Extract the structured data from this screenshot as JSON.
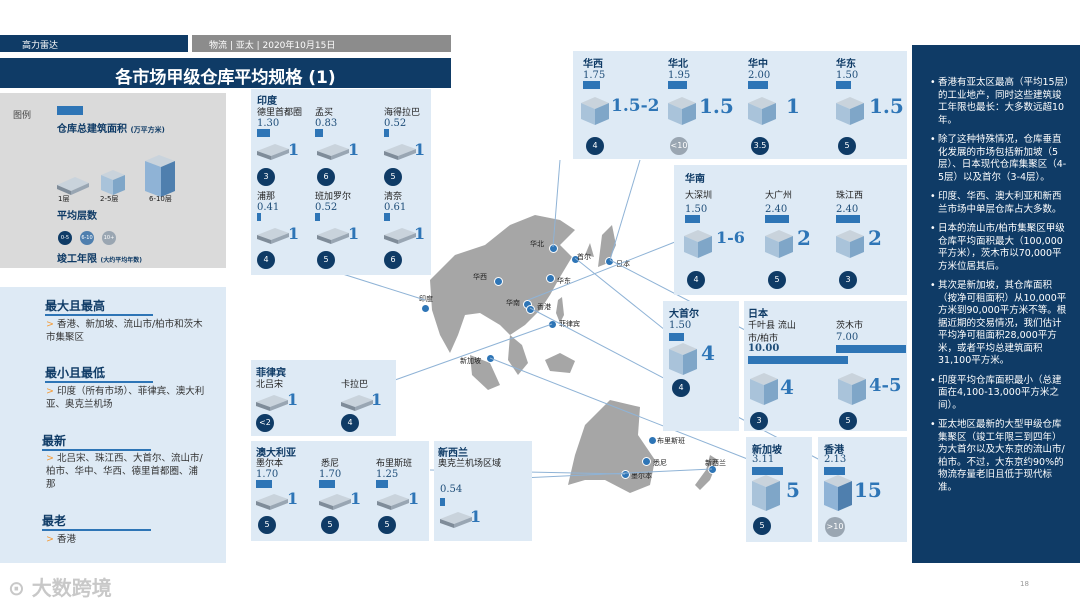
{
  "header": {
    "brand": "高力雷达",
    "meta": "物流 | 亚太 | 2020年10月15日",
    "title": "各市场甲级仓库平均规格 (1)"
  },
  "legend": {
    "label": "图例",
    "area_title": "仓库总建筑面积",
    "area_unit": "(万平方米)",
    "floor_1": "1层",
    "floor_2": "2-5层",
    "floor_3": "6-10层",
    "floors_title": "平均层数",
    "age_title": "竣工年限",
    "age_unit": "(大约平均年数)",
    "age_badges": [
      "0-5",
      "6-10",
      "10+"
    ]
  },
  "summary": [
    {
      "heading": "最大且最高",
      "text": "香港、新加坡、流山市/柏市和茨木市集聚区"
    },
    {
      "heading": "最小且最低",
      "text": "印度（所有市场）、菲律宾、澳大利亚、奥克兰机场"
    },
    {
      "heading": "最新",
      "text": "北吕宋、珠江西、大首尔、流山市/柏市、华中、华西、德里首都圈、浦那"
    },
    {
      "heading": "最老",
      "text": "香港"
    }
  ],
  "india": {
    "region": "印度",
    "cities": [
      {
        "name": "德里首都圈",
        "area": "1.30",
        "floors": "1",
        "age": "3"
      },
      {
        "name": "孟买",
        "area": "0.83",
        "floors": "1",
        "age": "6"
      },
      {
        "name": "海得拉巴",
        "area": "0.52",
        "floors": "1",
        "age": "5"
      },
      {
        "name": "浦那",
        "area": "0.41",
        "floors": "1",
        "age": "4"
      },
      {
        "name": "班加罗尔",
        "area": "0.52",
        "floors": "1",
        "age": "5"
      },
      {
        "name": "清奈",
        "area": "0.61",
        "floors": "1",
        "age": "6"
      }
    ]
  },
  "philippines": {
    "region": "菲律宾",
    "cities": [
      {
        "name": "北吕宋",
        "floors": "1",
        "age": "<2"
      },
      {
        "name": "卡拉巴",
        "floors": "1",
        "age": "4"
      }
    ]
  },
  "australia": {
    "region": "澳大利亚",
    "cities": [
      {
        "name": "墨尔本",
        "area": "1.70",
        "floors": "1",
        "age": "5"
      },
      {
        "name": "悉尼",
        "area": "1.70",
        "floors": "1",
        "age": "5"
      },
      {
        "name": "布里斯班",
        "area": "1.25",
        "floors": "1",
        "age": "5"
      }
    ]
  },
  "nz": {
    "region": "新西兰",
    "sub": "奥克兰机场区域",
    "area": "0.54",
    "floors": "1"
  },
  "china_top": [
    {
      "name": "华西",
      "area": "1.75",
      "floors": "1.5-2",
      "age": "4"
    },
    {
      "name": "华北",
      "area": "1.95",
      "floors": "1.5",
      "age": "<10"
    },
    {
      "name": "华中",
      "area": "2.00",
      "floors": "1",
      "age": "3.5"
    },
    {
      "name": "华东",
      "area": "1.50",
      "floors": "1.5",
      "age": "5"
    }
  ],
  "south_china": {
    "region": "华南",
    "cities": [
      {
        "name": "大深圳",
        "area": "1.50",
        "floors": "1-6",
        "age": "4"
      },
      {
        "name": "大广州",
        "area": "2.40",
        "floors": "2",
        "age": "5"
      },
      {
        "name": "珠江西",
        "area": "2.40",
        "floors": "2",
        "age": "3"
      }
    ]
  },
  "seoul": {
    "region": "大首尔",
    "area": "1.50",
    "floors": "4",
    "age": "4"
  },
  "japan": {
    "region": "日本",
    "cities": [
      {
        "name": "千叶县 流山市/柏市",
        "area": "10.00",
        "floors": "4",
        "age": "3"
      },
      {
        "name": "茨木市",
        "area": "7.00",
        "floors": "4-5",
        "age": "5"
      }
    ]
  },
  "singapore": {
    "region": "新加坡",
    "area": "3.11",
    "floors": "5",
    "age": "5"
  },
  "hongkong": {
    "region": "香港",
    "area": "2.13",
    "floors": "15",
    "age": ">10"
  },
  "map_labels": [
    "华北",
    "首尔",
    "日本",
    "华西",
    "华东",
    "印度",
    "华南",
    "香港",
    "菲律宾",
    "新加坡",
    "布里斯班",
    "悉尼",
    "墨尔本",
    "新西兰"
  ],
  "notes": [
    "香港有亚太区最高（平均15层）的工业地产，同时这些建筑竣工年限也最长：大多数远超10年。",
    "除了这种特殊情况，仓库垂直化发展的市场包括新加坡（5层）、日本现代仓库集聚区（4-5层）以及首尔（3-4层）。",
    "印度、华西、澳大利亚和新西兰市场中单层仓库占大多数。",
    "日本的流山市/柏市集聚区甲级仓库平均面积最大（100,000平方米），茨木市以70,000平方米位居其后。",
    "其次是新加坡，其仓库面积（按净可租面积）从10,000平方米到90,000平方米不等。根据近期的交易情况，我们估计平均净可租面积28,000平方米，或者平均总建筑面积31,100平方米。",
    "印度平均仓库面积最小（总建面在4,100-13,000平方米之间）。",
    "亚太地区最新的大型甲级仓库集聚区（竣工年限三到四年）为大首尔以及大东京的流山市/柏市。不过，大东京约90%的物流存量老旧且低于现代标准。"
  ],
  "footer": {
    "logo": "大数跨境",
    "page": "18"
  }
}
